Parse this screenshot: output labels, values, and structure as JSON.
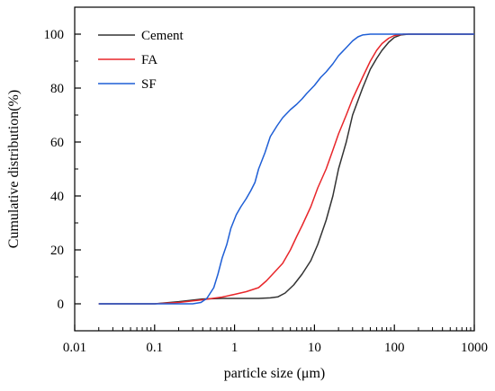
{
  "chart_data": {
    "type": "line",
    "title": "",
    "xlabel": "particle size (μm)",
    "ylabel": "Cumulative distribution(%)",
    "xscale": "log",
    "xlim": [
      0.01,
      1000
    ],
    "ylim": [
      -10,
      110
    ],
    "xticks": [
      0.01,
      0.1,
      1,
      10,
      100,
      1000
    ],
    "xtick_labels": [
      "0.01",
      "0.1",
      "1",
      "10",
      "100",
      "1000"
    ],
    "yticks": [
      0,
      20,
      40,
      60,
      80,
      100
    ],
    "ytick_labels": [
      "0",
      "20",
      "40",
      "60",
      "80",
      "100"
    ],
    "grid": false,
    "legend": "top-left",
    "series": [
      {
        "name": "Cement",
        "color": "#333333",
        "points": [
          [
            0.02,
            0
          ],
          [
            0.1,
            0
          ],
          [
            0.2,
            0.8
          ],
          [
            0.4,
            1.8
          ],
          [
            0.7,
            2.0
          ],
          [
            1,
            2.0
          ],
          [
            2,
            2.0
          ],
          [
            2.8,
            2.2
          ],
          [
            3.5,
            2.6
          ],
          [
            4.3,
            4
          ],
          [
            5.5,
            7
          ],
          [
            7,
            11
          ],
          [
            9,
            16
          ],
          [
            11,
            22
          ],
          [
            14,
            31
          ],
          [
            17,
            40
          ],
          [
            20,
            50
          ],
          [
            25,
            60
          ],
          [
            30,
            70
          ],
          [
            40,
            80
          ],
          [
            50,
            87
          ],
          [
            60,
            91
          ],
          [
            70,
            94
          ],
          [
            85,
            97
          ],
          [
            100,
            98.8
          ],
          [
            120,
            99.7
          ],
          [
            150,
            100
          ],
          [
            200,
            100
          ],
          [
            1000,
            100
          ]
        ]
      },
      {
        "name": "FA",
        "color": "#e8262a",
        "points": [
          [
            0.02,
            0
          ],
          [
            0.1,
            0
          ],
          [
            0.2,
            0.5
          ],
          [
            0.4,
            1.5
          ],
          [
            0.7,
            2.5
          ],
          [
            1,
            3.5
          ],
          [
            1.4,
            4.5
          ],
          [
            2,
            6
          ],
          [
            2.5,
            8.5
          ],
          [
            3,
            11
          ],
          [
            4,
            15
          ],
          [
            5,
            20
          ],
          [
            6,
            25
          ],
          [
            7,
            29
          ],
          [
            9,
            36
          ],
          [
            11,
            43
          ],
          [
            14,
            50
          ],
          [
            17,
            57
          ],
          [
            20,
            63
          ],
          [
            25,
            70
          ],
          [
            30,
            76
          ],
          [
            40,
            84
          ],
          [
            50,
            90
          ],
          [
            60,
            94
          ],
          [
            70,
            96.5
          ],
          [
            85,
            98.5
          ],
          [
            100,
            99.5
          ],
          [
            130,
            100
          ],
          [
            1000,
            100
          ]
        ]
      },
      {
        "name": "SF",
        "color": "#1f5fd6",
        "points": [
          [
            0.02,
            0
          ],
          [
            0.1,
            0
          ],
          [
            0.3,
            0
          ],
          [
            0.38,
            0.5
          ],
          [
            0.45,
            2
          ],
          [
            0.55,
            6
          ],
          [
            0.62,
            11
          ],
          [
            0.7,
            17
          ],
          [
            0.8,
            22
          ],
          [
            0.9,
            28
          ],
          [
            1.05,
            33
          ],
          [
            1.2,
            36
          ],
          [
            1.4,
            39
          ],
          [
            1.6,
            42
          ],
          [
            1.8,
            45
          ],
          [
            2,
            50
          ],
          [
            2.4,
            56
          ],
          [
            2.8,
            62
          ],
          [
            3.4,
            66
          ],
          [
            4,
            69
          ],
          [
            5,
            72
          ],
          [
            6,
            74
          ],
          [
            7,
            76
          ],
          [
            8,
            78
          ],
          [
            10,
            81
          ],
          [
            12,
            84
          ],
          [
            14,
            86
          ],
          [
            17,
            89
          ],
          [
            20,
            92
          ],
          [
            25,
            95
          ],
          [
            30,
            97.5
          ],
          [
            35,
            99
          ],
          [
            40,
            99.7
          ],
          [
            50,
            100
          ],
          [
            1000,
            100
          ]
        ]
      }
    ]
  }
}
